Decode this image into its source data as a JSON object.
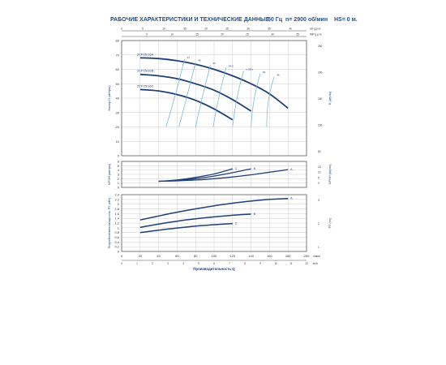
{
  "header": {
    "title": "РАБОЧИЕ ХАРАКТЕРИСТИКИ И ТЕХНИЧЕСКИЕ ДАННЫЕ",
    "freq": "50 Гц",
    "speed": "n= 2900 об/мин",
    "hs": "HS= 0 м."
  },
  "colors": {
    "curve": "#1f3f78",
    "eff": "#6fb3d2",
    "frame": "#4a4a4a",
    "grid": "#cfcfcf",
    "title": "#1f4e8c"
  },
  "chart_data": [
    {
      "type": "line",
      "panel": "head",
      "ylabel": "Напор H (метры)",
      "ylabel_right": "H (футы)",
      "ylim": [
        0,
        80
      ],
      "yticks": [
        0,
        10,
        20,
        30,
        40,
        50,
        60,
        70,
        80
      ],
      "yticks_right": [
        "250",
        "200",
        "150",
        "100",
        "50"
      ],
      "top_axis_1": {
        "unit": "US g.p.m.",
        "ticks": [
          "0",
          "5",
          "10",
          "15",
          "20",
          "25",
          "30",
          "35",
          "40"
        ]
      },
      "top_axis_2": {
        "unit": "IMP g.p.m.",
        "ticks": [
          "5",
          "10",
          "15",
          "20",
          "25",
          "30",
          "35"
        ]
      },
      "series": [
        {
          "name": "2CP25/16A",
          "x": [
            20,
            40,
            60,
            80,
            100,
            120,
            140,
            160,
            180
          ],
          "y": [
            68,
            67.5,
            66,
            63.5,
            60,
            55.5,
            50,
            43,
            33
          ]
        },
        {
          "name": "2CP25/16B",
          "x": [
            20,
            40,
            60,
            80,
            100,
            120,
            140
          ],
          "y": [
            56.5,
            55.5,
            53.5,
            50,
            45.5,
            39,
            31
          ]
        },
        {
          "name": "2CP25/16C",
          "x": [
            20,
            40,
            60,
            80,
            100,
            120
          ],
          "y": [
            46,
            45,
            42.5,
            38.5,
            32.5,
            25
          ]
        }
      ],
      "efficiency_labels": [
        "44",
        "49",
        "53",
        "54,5",
        "η 55%",
        "53",
        "49"
      ]
    },
    {
      "type": "line",
      "panel": "npsh",
      "ylabel": "NPSH (метры)",
      "ylabel_right": "NPSH (футы)",
      "ylim": [
        0,
        6
      ],
      "yticks": [
        0,
        1,
        2,
        3,
        4,
        5,
        6
      ],
      "yticks_right": [
        "15",
        "10",
        "5",
        "0"
      ],
      "series": [
        {
          "name": "C",
          "x": [
            40,
            60,
            80,
            100,
            120
          ],
          "y": [
            1.4,
            1.7,
            2.3,
            3.1,
            4.3
          ]
        },
        {
          "name": "B",
          "x": [
            40,
            60,
            80,
            100,
            120,
            140
          ],
          "y": [
            1.4,
            1.6,
            2.0,
            2.6,
            3.4,
            4.3
          ]
        },
        {
          "name": "A",
          "x": [
            40,
            60,
            80,
            100,
            120,
            140,
            160,
            180
          ],
          "y": [
            1.4,
            1.5,
            1.7,
            2.0,
            2.4,
            2.9,
            3.5,
            4.1
          ]
        }
      ]
    },
    {
      "type": "line",
      "panel": "power",
      "ylabel": "Потребляемая мощность P2 (кВт)",
      "ylabel_right": "P2 (лс)",
      "ylim": [
        0,
        2.4
      ],
      "yticks": [
        0,
        0.2,
        0.4,
        0.6,
        0.8,
        1.0,
        1.2,
        1.4,
        1.6,
        1.8,
        2.0,
        2.2,
        2.4
      ],
      "yticks_right": [
        "3",
        "2",
        "1"
      ],
      "xlabel": "Производительность Q",
      "xunit": "л/мин",
      "xunit2": "м³/ч",
      "xlim": [
        0,
        200
      ],
      "xticks": [
        0,
        20,
        40,
        60,
        80,
        100,
        120,
        140,
        160,
        180,
        200
      ],
      "xticks2": [
        0,
        1,
        2,
        3,
        4,
        5,
        6,
        7,
        8,
        9,
        10,
        11,
        12
      ],
      "series": [
        {
          "name": "A",
          "x": [
            20,
            40,
            60,
            80,
            100,
            120,
            140,
            160,
            180
          ],
          "y": [
            1.33,
            1.5,
            1.66,
            1.8,
            1.93,
            2.04,
            2.13,
            2.2,
            2.24
          ]
        },
        {
          "name": "B",
          "x": [
            20,
            40,
            60,
            80,
            100,
            120,
            140
          ],
          "y": [
            1.02,
            1.16,
            1.28,
            1.38,
            1.46,
            1.53,
            1.58
          ]
        },
        {
          "name": "C",
          "x": [
            20,
            40,
            60,
            80,
            100,
            120
          ],
          "y": [
            0.8,
            0.9,
            0.99,
            1.07,
            1.13,
            1.18
          ]
        }
      ]
    }
  ]
}
